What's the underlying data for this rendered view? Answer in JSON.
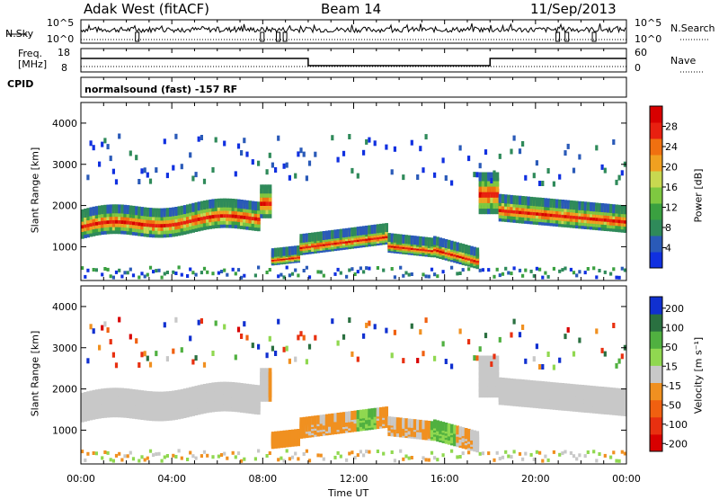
{
  "header": {
    "station": "Adak West (fitACF)",
    "beam": "Beam 14",
    "date": "11/Sep/2013"
  },
  "strip": {
    "nsky_label": "N.Sky",
    "nsky_top_tick": "10^5",
    "nsky_bottom_tick": "10^0",
    "nsearch_label": "N.Search",
    "nsearch_top_tick": "10^5",
    "nsearch_bottom_tick": "10^0",
    "freq_label_line1": "Freq.",
    "freq_label_line2": "[MHz]",
    "freq_top_tick": "18",
    "freq_bottom_tick": "8",
    "nave_label": "Nave",
    "nave_top_tick": "60",
    "nave_bottom_tick": "0",
    "cpid_label": "CPID",
    "cpid_text": "normalsound (fast) -157 RF"
  },
  "chart_data": [
    {
      "type": "heatmap",
      "panel": "power",
      "ylabel": "Slant Range [km]",
      "yticks": [
        "1000",
        "2000",
        "3000",
        "4000"
      ],
      "ytick_values": [
        1000,
        2000,
        3000,
        4000
      ],
      "ylim": [
        180,
        4500
      ],
      "xlim_hours": [
        0,
        24
      ],
      "colorbar": {
        "label": "Power [dB]",
        "ticks": [
          "4",
          "8",
          "12",
          "16",
          "20",
          "24",
          "28"
        ],
        "range": [
          0,
          32
        ],
        "colors": [
          "#1030e0",
          "#2a5ab8",
          "#2f8a5a",
          "#3aa040",
          "#7ec840",
          "#c8d850",
          "#f0a020",
          "#f07010",
          "#e82010",
          "#d80000"
        ]
      }
    },
    {
      "type": "heatmap",
      "panel": "velocity",
      "ylabel": "Slant Range [km]",
      "yticks": [
        "1000",
        "2000",
        "3000",
        "4000"
      ],
      "ytick_values": [
        1000,
        2000,
        3000,
        4000
      ],
      "ylim": [
        180,
        4500
      ],
      "xlim_hours": [
        0,
        24
      ],
      "xlabel": "Time UT",
      "xticks": [
        "00:00",
        "04:00",
        "08:00",
        "12:00",
        "16:00",
        "20:00",
        "00:00"
      ],
      "colorbar": {
        "label": "Velocity [m s⁻¹]",
        "ticks": [
          "200",
          "100",
          "50",
          "15",
          "-15",
          "-50",
          "-100",
          "-200"
        ],
        "colors": [
          "#1030d0",
          "#2a7040",
          "#50b040",
          "#90d850",
          "#c8c8c8",
          "#f09020",
          "#f06010",
          "#e83010",
          "#d80000"
        ]
      }
    }
  ]
}
